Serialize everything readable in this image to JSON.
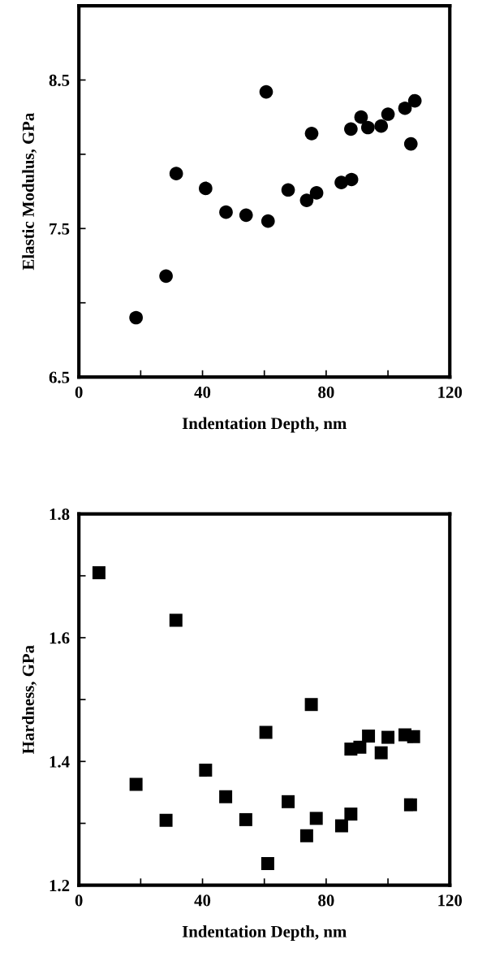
{
  "chart_data": [
    {
      "type": "scatter",
      "xlabel": "Indentation Depth, nm",
      "ylabel": "Elastic Modulus, GPa",
      "marker": "circle",
      "grid": false,
      "legend": false,
      "xlim": [
        0,
        120
      ],
      "xticks": [
        0,
        {
          "value": 20,
          "label": null
        },
        40,
        {
          "value": 60,
          "label": null
        },
        80,
        {
          "value": 100,
          "label": null
        },
        120
      ],
      "ylim": [
        6.5,
        9.0
      ],
      "yticks": [
        6.5,
        {
          "value": 7.0,
          "label": null
        },
        7.5,
        {
          "value": 8.0,
          "label": null
        },
        8.5
      ],
      "series": [
        {
          "color": "#000000",
          "x": [
            18.5,
            28.2,
            31.5,
            41.0,
            47.6,
            54.1,
            60.6,
            61.2,
            67.7,
            73.7,
            75.3,
            76.9,
            84.9,
            88.2,
            88.0,
            91.3,
            93.5,
            97.8,
            100.0,
            105.5,
            107.4,
            108.7
          ],
          "values": [
            6.9,
            7.18,
            7.87,
            7.77,
            7.61,
            7.59,
            8.42,
            7.55,
            7.76,
            7.69,
            8.14,
            7.74,
            7.81,
            7.83,
            8.17,
            8.25,
            8.18,
            8.19,
            8.27,
            8.31,
            8.07,
            8.36
          ]
        }
      ]
    },
    {
      "type": "scatter",
      "xlabel": "Indentation Depth, nm",
      "ylabel": "Hardness, GPa",
      "marker": "square",
      "grid": false,
      "legend": false,
      "xlim": [
        0,
        120
      ],
      "xticks": [
        0,
        {
          "value": 20,
          "label": null
        },
        40,
        {
          "value": 60,
          "label": null
        },
        80,
        {
          "value": 100,
          "label": null
        },
        120
      ],
      "ylim": [
        1.2,
        1.8
      ],
      "yticks": [
        1.2,
        {
          "value": 1.3,
          "label": null
        },
        1.4,
        {
          "value": 1.5,
          "label": null
        },
        1.6,
        {
          "value": 1.7,
          "label": null
        },
        1.8
      ],
      "series": [
        {
          "color": "#000000",
          "x": [
            6.5,
            18.5,
            28.2,
            31.4,
            41.0,
            47.5,
            54.0,
            60.5,
            61.1,
            67.7,
            73.7,
            75.2,
            76.8,
            85.0,
            88.0,
            88.0,
            90.9,
            93.7,
            97.8,
            100.0,
            105.5,
            108.3,
            107.3
          ],
          "values": [
            1.705,
            1.363,
            1.305,
            1.628,
            1.386,
            1.343,
            1.306,
            1.447,
            1.235,
            1.335,
            1.28,
            1.492,
            1.308,
            1.296,
            1.315,
            1.42,
            1.423,
            1.441,
            1.414,
            1.439,
            1.443,
            1.44,
            1.33
          ]
        }
      ]
    }
  ]
}
